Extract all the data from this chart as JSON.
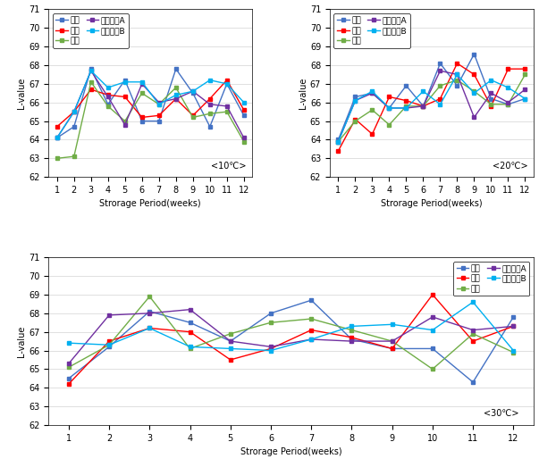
{
  "weeks": [
    1,
    2,
    3,
    4,
    5,
    6,
    7,
    8,
    9,
    10,
    11,
    12
  ],
  "chart10": {
    "title": "<10℃>",
    "daegi": [
      64.1,
      64.7,
      67.8,
      65.9,
      67.2,
      65.0,
      65.0,
      67.8,
      66.5,
      64.7,
      67.0,
      65.3
    ],
    "jingong": [
      64.7,
      65.5,
      66.7,
      66.4,
      66.3,
      65.2,
      65.3,
      66.2,
      65.3,
      66.2,
      67.2,
      65.6
    ],
    "jilso": [
      63.0,
      63.1,
      67.1,
      65.8,
      65.0,
      66.5,
      65.9,
      66.8,
      65.2,
      65.4,
      65.5,
      63.9
    ],
    "honhapA": [
      64.1,
      65.5,
      67.7,
      66.3,
      64.8,
      67.0,
      66.0,
      66.2,
      66.6,
      65.9,
      65.8,
      64.1
    ],
    "honhapB": [
      64.1,
      65.5,
      67.7,
      66.8,
      67.1,
      67.1,
      65.9,
      66.4,
      66.6,
      67.2,
      67.0,
      66.0
    ]
  },
  "chart20": {
    "title": "<20℃>",
    "daegi": [
      64.0,
      66.3,
      66.5,
      65.7,
      66.9,
      65.8,
      68.1,
      66.9,
      68.6,
      66.2,
      65.9,
      66.2
    ],
    "jingong": [
      63.4,
      65.1,
      64.3,
      66.3,
      66.1,
      65.8,
      66.2,
      68.1,
      67.5,
      65.8,
      67.8,
      67.8
    ],
    "jilso": [
      63.9,
      65.0,
      65.6,
      64.8,
      65.8,
      65.8,
      66.9,
      67.2,
      66.6,
      65.9,
      65.9,
      67.5
    ],
    "honhapA": [
      63.9,
      66.1,
      66.5,
      65.7,
      65.7,
      65.8,
      67.7,
      67.5,
      65.2,
      66.5,
      66.0,
      66.7
    ],
    "honhapB": [
      63.9,
      66.1,
      66.6,
      65.7,
      65.7,
      66.6,
      65.9,
      67.5,
      66.5,
      67.2,
      66.8,
      66.2
    ]
  },
  "chart30": {
    "title": "<30℃>",
    "daegi": [
      64.5,
      66.2,
      68.1,
      67.5,
      66.5,
      68.0,
      68.7,
      66.6,
      66.1,
      66.1,
      64.3,
      67.8
    ],
    "jingong": [
      64.2,
      66.5,
      67.2,
      67.0,
      65.5,
      66.1,
      67.1,
      66.7,
      66.1,
      69.0,
      66.5,
      67.3
    ],
    "jilso": [
      65.1,
      66.3,
      68.9,
      66.1,
      66.9,
      67.5,
      67.7,
      67.1,
      66.5,
      65.0,
      66.9,
      65.9
    ],
    "honhapA": [
      65.3,
      67.9,
      68.0,
      68.2,
      66.5,
      66.2,
      66.6,
      66.5,
      66.5,
      67.8,
      67.1,
      67.3
    ],
    "honhapB": [
      66.4,
      66.3,
      67.2,
      66.2,
      66.1,
      66.0,
      66.6,
      67.3,
      67.4,
      67.1,
      68.6,
      66.0
    ]
  },
  "colors": {
    "daegi": "#4472C4",
    "jingong": "#FF0000",
    "jilso": "#70AD47",
    "honhapA": "#7030A0",
    "honhapB": "#00B0F0"
  },
  "legend_labels": {
    "daegi": "대기",
    "jingong": "진공",
    "jilso": "질소",
    "honhapA": "혼합가스A",
    "honhapB": "혼합가스B"
  },
  "xlabel": "Strorage Period(weeks)",
  "ylabel": "L-value",
  "ylim": [
    62,
    71
  ],
  "yticks": [
    62,
    63,
    64,
    65,
    66,
    67,
    68,
    69,
    70,
    71
  ],
  "xticks": [
    1,
    2,
    3,
    4,
    5,
    6,
    7,
    8,
    9,
    10,
    11,
    12
  ]
}
